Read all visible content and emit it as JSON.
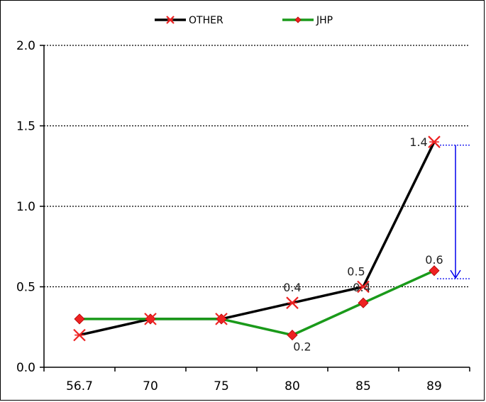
{
  "chart_data": {
    "type": "line",
    "categories": [
      "56.7",
      "70",
      "75",
      "80",
      "85",
      "89"
    ],
    "ylim": [
      0,
      2.0
    ],
    "yticks": [
      "0.0",
      "0.5",
      "1.0",
      "1.5",
      "2.0"
    ],
    "ytick_values": [
      0,
      0.5,
      1.0,
      1.5,
      2.0
    ],
    "grid": "horizontal dotted",
    "legend": "top-center",
    "series": [
      {
        "name": "OTHER",
        "color": "#000000",
        "marker": "asterisk",
        "marker_color": "#ee2222",
        "values": [
          0.2,
          0.3,
          0.3,
          0.4,
          0.5,
          1.4
        ],
        "data_labels": [
          "",
          "",
          "",
          "0.4",
          "0.5",
          "1.4"
        ]
      },
      {
        "name": "JHP",
        "color": "#1a9a1a",
        "marker": "diamond",
        "marker_color": "#ee2222",
        "values": [
          0.3,
          0.3,
          0.3,
          0.2,
          0.4,
          0.6
        ],
        "data_labels": [
          "",
          "",
          "",
          "0.2",
          "0.4",
          "0.6"
        ]
      }
    ],
    "annotation": {
      "type": "gap-arrow",
      "category_index": 5,
      "from_value": 1.38,
      "to_value": 0.55,
      "color": "#0000ee"
    }
  }
}
